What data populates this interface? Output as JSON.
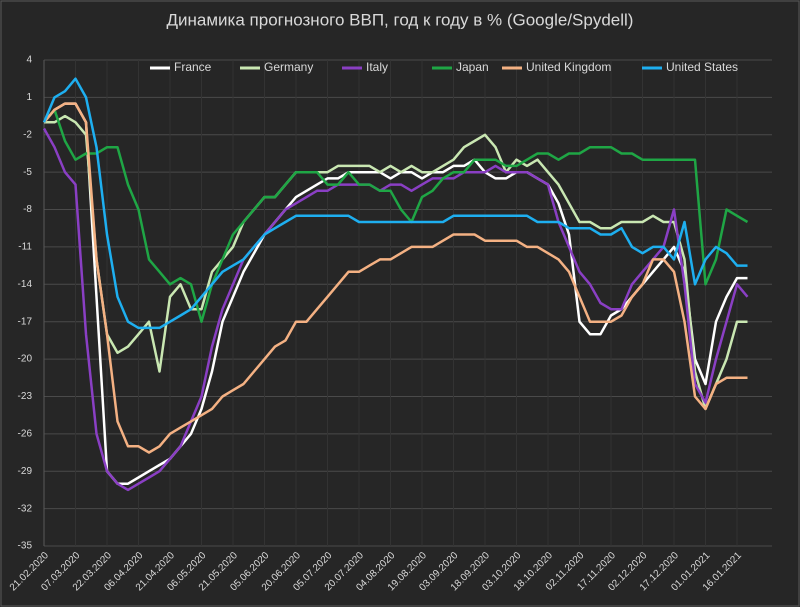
{
  "chart_data": {
    "type": "line",
    "title": "Динамика прогнозного ВВП, год к году в % (Google/Spydell)",
    "categories": [
      "21.02.2020",
      null,
      null,
      "07.03.2020",
      null,
      null,
      "22.03.2020",
      null,
      null,
      "06.04.2020",
      null,
      null,
      "21.04.2020",
      null,
      null,
      "06.05.2020",
      null,
      null,
      "21.05.2020",
      null,
      null,
      "05.06.2020",
      null,
      null,
      "20.06.2020",
      null,
      null,
      "05.07.2020",
      null,
      null,
      "20.07.2020",
      null,
      null,
      "04.08.2020",
      null,
      null,
      "19.08.2020",
      null,
      null,
      "03.09.2020",
      null,
      null,
      "18.09.2020",
      null,
      null,
      "03.10.2020",
      null,
      null,
      "18.10.2020",
      null,
      null,
      "02.11.2020",
      null,
      null,
      "17.11.2020",
      null,
      null,
      "02.12.2020",
      null,
      null,
      "17.12.2020",
      null,
      null,
      "01.01.2021",
      null,
      null,
      "16.01.2021",
      null
    ],
    "series": [
      {
        "name": "France",
        "color": "#ffffff",
        "values": [
          -1,
          0,
          0.5,
          0.5,
          -1,
          -15,
          -29,
          -30,
          -30,
          -29.5,
          -29,
          -28.5,
          -28,
          -27,
          -26,
          -24,
          -21,
          -17,
          -15,
          -13,
          -11.5,
          -10,
          -9,
          -8,
          -7,
          -6.5,
          -6,
          -5.5,
          -5.5,
          -5,
          -5,
          -5,
          -5,
          -5.5,
          -5,
          -5,
          -5.5,
          -5,
          -5,
          -4.5,
          -4.5,
          -4,
          -5,
          -5.5,
          -5.5,
          -5,
          -5,
          -5.5,
          -6,
          -7.5,
          -10,
          -17,
          -18,
          -18,
          -16.5,
          -16,
          -15,
          -14,
          -13,
          -12,
          -11,
          -13,
          -20,
          -22,
          -17,
          -15,
          -13.5,
          -13.5
        ]
      },
      {
        "name": "Germany",
        "color": "#c9e7b2",
        "values": [
          -1,
          -1,
          -0.5,
          -1,
          -2,
          -12,
          -18,
          -19.5,
          -19,
          -18,
          -17,
          -21,
          -15,
          -14,
          -16,
          -16,
          -13,
          -12,
          -11,
          -9,
          -8,
          -7,
          -7,
          -6,
          -5,
          -5,
          -5,
          -5,
          -4.5,
          -4.5,
          -4.5,
          -4.5,
          -5,
          -4.5,
          -5,
          -4.5,
          -5,
          -5,
          -4.5,
          -4,
          -3,
          -2.5,
          -2,
          -3,
          -5,
          -4,
          -4.5,
          -4,
          -5,
          -6,
          -7.5,
          -9,
          -9,
          -9.5,
          -9.5,
          -9,
          -9,
          -9,
          -8.5,
          -9,
          -9,
          -12,
          -21,
          -24,
          -22,
          -20,
          -17,
          -17
        ]
      },
      {
        "name": "Italy",
        "color": "#8a3fc4",
        "values": [
          -1.5,
          -3,
          -5,
          -6,
          -18,
          -26,
          -29,
          -30,
          -30.5,
          -30,
          -29.5,
          -29,
          -28,
          -27,
          -25,
          -23,
          -19,
          -16,
          -14,
          -12,
          -11,
          -10,
          -9,
          -8,
          -7.5,
          -7,
          -6.5,
          -6.5,
          -6,
          -6,
          -6,
          -6,
          -6.5,
          -6,
          -6,
          -6.5,
          -6,
          -5.5,
          -5.5,
          -5.5,
          -5,
          -5,
          -5,
          -4.5,
          -5,
          -5,
          -5,
          -5.5,
          -6,
          -9,
          -11,
          -13,
          -14,
          -15.5,
          -16,
          -16,
          -14,
          -13,
          -12,
          -11,
          -8,
          -14,
          -22,
          -23.5,
          -20,
          -17,
          -14,
          -15
        ]
      },
      {
        "name": "Japan",
        "color": "#1fa645",
        "values": [
          -1,
          0,
          -2.5,
          -4,
          -3.5,
          -3.5,
          -3,
          -3,
          -6,
          -8,
          -12,
          -13,
          -14,
          -13.5,
          -14,
          -17,
          -14,
          -12,
          -10,
          -9,
          -8,
          -7,
          -7,
          -6,
          -5,
          -5,
          -5,
          -6,
          -6,
          -5,
          -6,
          -6,
          -6.5,
          -6.5,
          -8,
          -9,
          -7,
          -6.5,
          -5.5,
          -5,
          -5,
          -4,
          -4,
          -4,
          -4.5,
          -4.5,
          -4,
          -3.5,
          -3.5,
          -4,
          -3.5,
          -3.5,
          -3,
          -3,
          -3,
          -3.5,
          -3.5,
          -4,
          -4,
          -4,
          -4,
          -4,
          -4,
          -14,
          -12,
          -8,
          -8.5,
          -9
        ]
      },
      {
        "name": "United Kingdom",
        "color": "#f4b183",
        "values": [
          -1,
          0,
          0.5,
          0.5,
          -1,
          -12,
          -18,
          -25,
          -27,
          -27,
          -27.5,
          -27,
          -26,
          -25.5,
          -25,
          -24.5,
          -24,
          -23,
          -22.5,
          -22,
          -21,
          -20,
          -19,
          -18.5,
          -17,
          -17,
          -16,
          -15,
          -14,
          -13,
          -13,
          -12.5,
          -12,
          -12,
          -11.5,
          -11,
          -11,
          -11,
          -10.5,
          -10,
          -10,
          -10,
          -10.5,
          -10.5,
          -10.5,
          -10.5,
          -11,
          -11,
          -11.5,
          -12,
          -13,
          -15,
          -17,
          -17,
          -17,
          -16.5,
          -15,
          -14,
          -12,
          -12,
          -13,
          -17,
          -23,
          -24,
          -22,
          -21.5,
          -21.5,
          -21.5
        ]
      },
      {
        "name": "United States",
        "color": "#1eaff0",
        "values": [
          -1,
          1,
          1.5,
          2.5,
          1,
          -3,
          -10,
          -15,
          -17,
          -17.5,
          -17.5,
          -17.5,
          -17,
          -16.5,
          -16,
          -15,
          -14,
          -13,
          -12.5,
          -12,
          -11,
          -10,
          -9.5,
          -9,
          -8.5,
          -8.5,
          -8.5,
          -8.5,
          -8.5,
          -8.5,
          -9,
          -9,
          -9,
          -9,
          -9,
          -9,
          -9,
          -9,
          -9,
          -8.5,
          -8.5,
          -8.5,
          -8.5,
          -8.5,
          -8.5,
          -8.5,
          -8.5,
          -9,
          -9,
          -9,
          -9.5,
          -9.5,
          -9.5,
          -10,
          -10,
          -9.5,
          -11,
          -11.5,
          -11,
          -11,
          -12,
          -9,
          -14,
          -12,
          -11,
          -11.5,
          -12.5,
          -12.5
        ]
      }
    ],
    "ylim": [
      -35,
      4
    ],
    "yticks": [
      4,
      1,
      -2,
      -5,
      -8,
      -11,
      -14,
      -17,
      -20,
      -23,
      -26,
      -29,
      -32,
      -35
    ],
    "grid": true,
    "legend": "top"
  }
}
